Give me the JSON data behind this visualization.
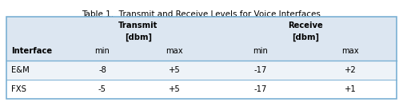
{
  "title": "Table 1.  Transmit and Receive Levels for Voice Interfaces",
  "title_fontsize": 7.5,
  "rows": [
    [
      "E&M",
      "-8",
      "+5",
      "-17",
      "+2"
    ],
    [
      "FXS",
      "-5",
      "+5",
      "-17",
      "+1"
    ]
  ],
  "header_bg": "#dce6f1",
  "row1_bg": "#eef3f8",
  "row2_bg": "#ffffff",
  "border_color": "#7ab0d4",
  "separator_color": "#7ab0d4",
  "text_color": "#000000"
}
